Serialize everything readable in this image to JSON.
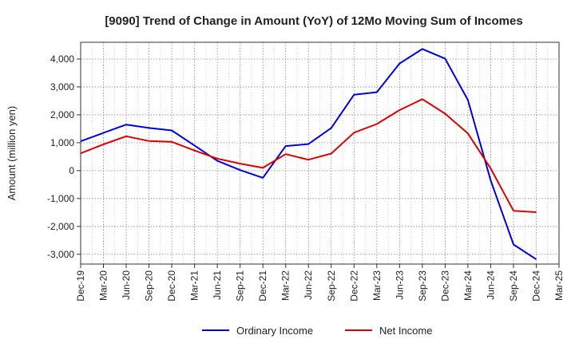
{
  "chart_data": {
    "type": "line",
    "title": "[9090]  Trend of Change in Amount (YoY) of 12Mo Moving Sum of Incomes",
    "xlabel": "",
    "ylabel": "Amount (million yen)",
    "ylim": [
      -3350,
      4600
    ],
    "yticks": [
      4000,
      3000,
      2000,
      1000,
      0,
      -1000,
      -2000,
      -3000
    ],
    "ytick_labels": [
      "4,000",
      "3,000",
      "2,000",
      "1,000",
      "0",
      "-1,000",
      "-2,000",
      "-3,000"
    ],
    "categories": [
      "Dec-19",
      "Mar-20",
      "Jun-20",
      "Sep-20",
      "Dec-20",
      "Mar-21",
      "Jun-21",
      "Sep-21",
      "Dec-21",
      "Mar-22",
      "Jun-22",
      "Sep-22",
      "Dec-22",
      "Mar-23",
      "Jun-23",
      "Sep-23",
      "Dec-23",
      "Mar-24",
      "Jun-24",
      "Sep-24",
      "Dec-24",
      "Mar-25"
    ],
    "grid": true,
    "legend_position": "bottom",
    "series": [
      {
        "name": "Ordinary Income",
        "color": "#0000dd",
        "values": [
          1050,
          1350,
          1650,
          1530,
          1440,
          900,
          350,
          20,
          -260,
          880,
          950,
          1530,
          2720,
          2810,
          3840,
          4360,
          4010,
          2530,
          -350,
          -2650,
          -3180,
          null
        ]
      },
      {
        "name": "Net Income",
        "color": "#dd0000",
        "values": [
          620,
          940,
          1230,
          1060,
          1030,
          720,
          430,
          250,
          100,
          590,
          390,
          610,
          1360,
          1670,
          2170,
          2560,
          2040,
          1330,
          80,
          -1440,
          -1490,
          null
        ]
      }
    ]
  }
}
